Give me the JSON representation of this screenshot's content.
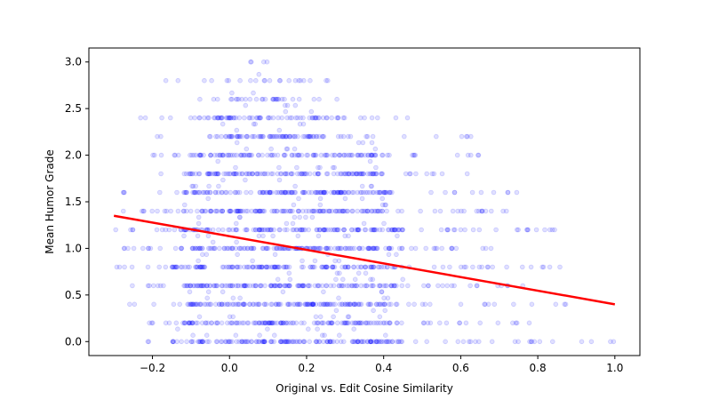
{
  "chart_data": {
    "type": "scatter",
    "title": "",
    "xlabel": "Original vs. Edit Cosine Similarity",
    "ylabel": "Mean Humor Grade",
    "xlim": [
      -0.365,
      1.065
    ],
    "ylim": [
      -0.15,
      3.15
    ],
    "xticks": [
      -0.2,
      0.0,
      0.2,
      0.4,
      0.6,
      0.8,
      1.0
    ],
    "xtick_labels": [
      "−0.2",
      "0.0",
      "0.2",
      "0.4",
      "0.6",
      "0.8",
      "1.0"
    ],
    "yticks": [
      0.0,
      0.5,
      1.0,
      1.5,
      2.0,
      2.5,
      3.0
    ],
    "ytick_labels": [
      "0.0",
      "0.5",
      "1.0",
      "1.5",
      "2.0",
      "2.5",
      "3.0"
    ],
    "grid": false,
    "legend": "none",
    "series": [
      {
        "kind": "scatter-bands",
        "marker": "circle",
        "color": "#0000ff",
        "opacity": 0.12,
        "bands": [
          {
            "y": 0.0,
            "x_range": [
              -0.25,
              1.0
            ],
            "dense_range": [
              -0.15,
              0.45
            ],
            "count": 170
          },
          {
            "y": 0.2,
            "x_range": [
              -0.22,
              0.78
            ],
            "dense_range": [
              -0.12,
              0.42
            ],
            "count": 150
          },
          {
            "y": 0.4,
            "x_range": [
              -0.26,
              0.92
            ],
            "dense_range": [
              -0.12,
              0.45
            ],
            "count": 160
          },
          {
            "y": 0.6,
            "x_range": [
              -0.26,
              0.78
            ],
            "dense_range": [
              -0.12,
              0.45
            ],
            "count": 160
          },
          {
            "y": 0.8,
            "x_range": [
              -0.3,
              0.87
            ],
            "dense_range": [
              -0.15,
              0.45
            ],
            "count": 160
          },
          {
            "y": 1.0,
            "x_range": [
              -0.3,
              0.72
            ],
            "dense_range": [
              -0.15,
              0.45
            ],
            "count": 160
          },
          {
            "y": 1.2,
            "x_range": [
              -0.3,
              0.85
            ],
            "dense_range": [
              -0.12,
              0.45
            ],
            "count": 160
          },
          {
            "y": 1.4,
            "x_range": [
              -0.28,
              0.75
            ],
            "dense_range": [
              -0.12,
              0.42
            ],
            "count": 150
          },
          {
            "y": 1.6,
            "x_range": [
              -0.28,
              0.82
            ],
            "dense_range": [
              -0.12,
              0.42
            ],
            "count": 150
          },
          {
            "y": 1.8,
            "x_range": [
              -0.25,
              0.62
            ],
            "dense_range": [
              -0.12,
              0.4
            ],
            "count": 130
          },
          {
            "y": 2.0,
            "x_range": [
              -0.25,
              0.65
            ],
            "dense_range": [
              -0.1,
              0.38
            ],
            "count": 120
          },
          {
            "y": 2.2,
            "x_range": [
              -0.22,
              0.66
            ],
            "dense_range": [
              -0.05,
              0.25
            ],
            "count": 90
          },
          {
            "y": 2.4,
            "x_range": [
              -0.25,
              0.5
            ],
            "dense_range": [
              -0.08,
              0.3
            ],
            "count": 80
          },
          {
            "y": 2.6,
            "x_range": [
              -0.1,
              0.3
            ],
            "dense_range": [
              -0.05,
              0.2
            ],
            "count": 30
          },
          {
            "y": 2.8,
            "x_range": [
              -0.18,
              0.3
            ],
            "dense_range": [
              -0.05,
              0.2
            ],
            "count": 22
          },
          {
            "y": 3.0,
            "x_range": [
              0.05,
              0.2
            ],
            "dense_range": [
              0.05,
              0.2
            ],
            "count": 4
          }
        ]
      },
      {
        "kind": "regression-line",
        "color": "#ff0000",
        "points": [
          [
            -0.3,
            1.35
          ],
          [
            1.0,
            0.4
          ]
        ]
      }
    ]
  }
}
